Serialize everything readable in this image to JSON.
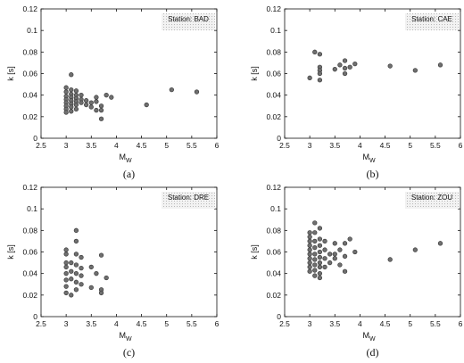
{
  "chart_data": [
    {
      "type": "scatter",
      "panel_label": "(a)",
      "station_label": "Station: BAD",
      "xlabel_base": "M",
      "xlabel_sub": "W",
      "ylabel": "k [s]",
      "xlim": [
        2.5,
        6
      ],
      "ylim": [
        0,
        0.12
      ],
      "xticks": [
        "2.5",
        "3",
        "3.5",
        "4",
        "4.5",
        "5",
        "5.5",
        "6"
      ],
      "yticks": [
        "0",
        "0.02",
        "0.04",
        "0.06",
        "0.08",
        "0.1",
        "0.12"
      ],
      "grid": false,
      "points": [
        {
          "x": 3.0,
          "y": 0.047
        },
        {
          "x": 3.0,
          "y": 0.043
        },
        {
          "x": 3.0,
          "y": 0.039
        },
        {
          "x": 3.0,
          "y": 0.036
        },
        {
          "x": 3.0,
          "y": 0.033
        },
        {
          "x": 3.0,
          "y": 0.03
        },
        {
          "x": 3.0,
          "y": 0.027
        },
        {
          "x": 3.0,
          "y": 0.024
        },
        {
          "x": 3.1,
          "y": 0.059
        },
        {
          "x": 3.1,
          "y": 0.045
        },
        {
          "x": 3.1,
          "y": 0.041
        },
        {
          "x": 3.1,
          "y": 0.038
        },
        {
          "x": 3.1,
          "y": 0.035
        },
        {
          "x": 3.1,
          "y": 0.032
        },
        {
          "x": 3.1,
          "y": 0.029
        },
        {
          "x": 3.1,
          "y": 0.025
        },
        {
          "x": 3.2,
          "y": 0.044
        },
        {
          "x": 3.2,
          "y": 0.04
        },
        {
          "x": 3.2,
          "y": 0.037
        },
        {
          "x": 3.2,
          "y": 0.034
        },
        {
          "x": 3.2,
          "y": 0.031
        },
        {
          "x": 3.2,
          "y": 0.027
        },
        {
          "x": 3.3,
          "y": 0.04
        },
        {
          "x": 3.3,
          "y": 0.036
        },
        {
          "x": 3.3,
          "y": 0.033
        },
        {
          "x": 3.4,
          "y": 0.035
        },
        {
          "x": 3.4,
          "y": 0.031
        },
        {
          "x": 3.5,
          "y": 0.033
        },
        {
          "x": 3.5,
          "y": 0.029
        },
        {
          "x": 3.6,
          "y": 0.038
        },
        {
          "x": 3.6,
          "y": 0.034
        },
        {
          "x": 3.6,
          "y": 0.026
        },
        {
          "x": 3.7,
          "y": 0.03
        },
        {
          "x": 3.7,
          "y": 0.026
        },
        {
          "x": 3.7,
          "y": 0.018
        },
        {
          "x": 3.8,
          "y": 0.04
        },
        {
          "x": 3.9,
          "y": 0.038
        },
        {
          "x": 4.6,
          "y": 0.031
        },
        {
          "x": 5.1,
          "y": 0.045
        },
        {
          "x": 5.6,
          "y": 0.043
        }
      ]
    },
    {
      "type": "scatter",
      "panel_label": "(b)",
      "station_label": "Station: CAE",
      "xlabel_base": "M",
      "xlabel_sub": "W",
      "ylabel": "k [s]",
      "xlim": [
        2.5,
        6
      ],
      "ylim": [
        0,
        0.12
      ],
      "xticks": [
        "2.5",
        "3",
        "3.5",
        "4",
        "4.5",
        "5",
        "5.5",
        "6"
      ],
      "yticks": [
        "0",
        "0.02",
        "0.04",
        "0.06",
        "0.08",
        "0.1",
        "0.12"
      ],
      "grid": false,
      "points": [
        {
          "x": 3.0,
          "y": 0.056
        },
        {
          "x": 3.1,
          "y": 0.08
        },
        {
          "x": 3.2,
          "y": 0.078
        },
        {
          "x": 3.2,
          "y": 0.066
        },
        {
          "x": 3.2,
          "y": 0.063
        },
        {
          "x": 3.2,
          "y": 0.06
        },
        {
          "x": 3.2,
          "y": 0.054
        },
        {
          "x": 3.5,
          "y": 0.064
        },
        {
          "x": 3.6,
          "y": 0.068
        },
        {
          "x": 3.7,
          "y": 0.072
        },
        {
          "x": 3.7,
          "y": 0.065
        },
        {
          "x": 3.7,
          "y": 0.06
        },
        {
          "x": 3.8,
          "y": 0.066
        },
        {
          "x": 3.9,
          "y": 0.069
        },
        {
          "x": 4.6,
          "y": 0.067
        },
        {
          "x": 5.1,
          "y": 0.063
        },
        {
          "x": 5.6,
          "y": 0.068
        }
      ]
    },
    {
      "type": "scatter",
      "panel_label": "(c)",
      "station_label": "Station: DRE",
      "xlabel_base": "M",
      "xlabel_sub": "W",
      "ylabel": "k [s]",
      "xlim": [
        2.5,
        6
      ],
      "ylim": [
        0,
        0.12
      ],
      "xticks": [
        "2.5",
        "3",
        "3.5",
        "4",
        "4.5",
        "5",
        "5.5",
        "6"
      ],
      "yticks": [
        "0",
        "0.02",
        "0.04",
        "0.06",
        "0.08",
        "0.1",
        "0.12"
      ],
      "grid": false,
      "points": [
        {
          "x": 3.0,
          "y": 0.062
        },
        {
          "x": 3.0,
          "y": 0.058
        },
        {
          "x": 3.0,
          "y": 0.05
        },
        {
          "x": 3.0,
          "y": 0.046
        },
        {
          "x": 3.0,
          "y": 0.04
        },
        {
          "x": 3.0,
          "y": 0.034
        },
        {
          "x": 3.0,
          "y": 0.028
        },
        {
          "x": 3.0,
          "y": 0.022
        },
        {
          "x": 3.1,
          "y": 0.05
        },
        {
          "x": 3.1,
          "y": 0.042
        },
        {
          "x": 3.1,
          "y": 0.035
        },
        {
          "x": 3.1,
          "y": 0.02
        },
        {
          "x": 3.2,
          "y": 0.08
        },
        {
          "x": 3.2,
          "y": 0.07
        },
        {
          "x": 3.2,
          "y": 0.058
        },
        {
          "x": 3.2,
          "y": 0.048
        },
        {
          "x": 3.2,
          "y": 0.04
        },
        {
          "x": 3.2,
          "y": 0.032
        },
        {
          "x": 3.2,
          "y": 0.025
        },
        {
          "x": 3.3,
          "y": 0.055
        },
        {
          "x": 3.3,
          "y": 0.045
        },
        {
          "x": 3.3,
          "y": 0.038
        },
        {
          "x": 3.3,
          "y": 0.03
        },
        {
          "x": 3.5,
          "y": 0.046
        },
        {
          "x": 3.5,
          "y": 0.027
        },
        {
          "x": 3.6,
          "y": 0.04
        },
        {
          "x": 3.7,
          "y": 0.057
        },
        {
          "x": 3.7,
          "y": 0.025
        },
        {
          "x": 3.7,
          "y": 0.022
        },
        {
          "x": 3.8,
          "y": 0.036
        }
      ]
    },
    {
      "type": "scatter",
      "panel_label": "(d)",
      "station_label": "Station: ZOU",
      "xlabel_base": "M",
      "xlabel_sub": "W",
      "ylabel": "k [s]",
      "xlim": [
        2.5,
        6
      ],
      "ylim": [
        0,
        0.12
      ],
      "xticks": [
        "2.5",
        "3",
        "3.5",
        "4",
        "4.5",
        "5",
        "5.5",
        "6"
      ],
      "yticks": [
        "0",
        "0.02",
        "0.04",
        "0.06",
        "0.08",
        "0.1",
        "0.12"
      ],
      "grid": false,
      "points": [
        {
          "x": 3.0,
          "y": 0.078
        },
        {
          "x": 3.0,
          "y": 0.074
        },
        {
          "x": 3.0,
          "y": 0.07
        },
        {
          "x": 3.0,
          "y": 0.066
        },
        {
          "x": 3.0,
          "y": 0.062
        },
        {
          "x": 3.0,
          "y": 0.058
        },
        {
          "x": 3.0,
          "y": 0.054
        },
        {
          "x": 3.0,
          "y": 0.05
        },
        {
          "x": 3.0,
          "y": 0.046
        },
        {
          "x": 3.0,
          "y": 0.042
        },
        {
          "x": 3.1,
          "y": 0.087
        },
        {
          "x": 3.1,
          "y": 0.078
        },
        {
          "x": 3.1,
          "y": 0.07
        },
        {
          "x": 3.1,
          "y": 0.064
        },
        {
          "x": 3.1,
          "y": 0.058
        },
        {
          "x": 3.1,
          "y": 0.053
        },
        {
          "x": 3.1,
          "y": 0.048
        },
        {
          "x": 3.1,
          "y": 0.043
        },
        {
          "x": 3.1,
          "y": 0.038
        },
        {
          "x": 3.2,
          "y": 0.082
        },
        {
          "x": 3.2,
          "y": 0.072
        },
        {
          "x": 3.2,
          "y": 0.066
        },
        {
          "x": 3.2,
          "y": 0.06
        },
        {
          "x": 3.2,
          "y": 0.055
        },
        {
          "x": 3.2,
          "y": 0.05
        },
        {
          "x": 3.2,
          "y": 0.046
        },
        {
          "x": 3.2,
          "y": 0.04
        },
        {
          "x": 3.2,
          "y": 0.036
        },
        {
          "x": 3.3,
          "y": 0.07
        },
        {
          "x": 3.3,
          "y": 0.062
        },
        {
          "x": 3.3,
          "y": 0.054
        },
        {
          "x": 3.3,
          "y": 0.046
        },
        {
          "x": 3.4,
          "y": 0.058
        },
        {
          "x": 3.4,
          "y": 0.05
        },
        {
          "x": 3.5,
          "y": 0.068
        },
        {
          "x": 3.5,
          "y": 0.058
        },
        {
          "x": 3.5,
          "y": 0.054
        },
        {
          "x": 3.6,
          "y": 0.062
        },
        {
          "x": 3.6,
          "y": 0.048
        },
        {
          "x": 3.7,
          "y": 0.068
        },
        {
          "x": 3.7,
          "y": 0.056
        },
        {
          "x": 3.7,
          "y": 0.042
        },
        {
          "x": 3.8,
          "y": 0.072
        },
        {
          "x": 3.9,
          "y": 0.06
        },
        {
          "x": 4.6,
          "y": 0.053
        },
        {
          "x": 5.1,
          "y": 0.062
        },
        {
          "x": 5.6,
          "y": 0.068
        }
      ]
    }
  ]
}
